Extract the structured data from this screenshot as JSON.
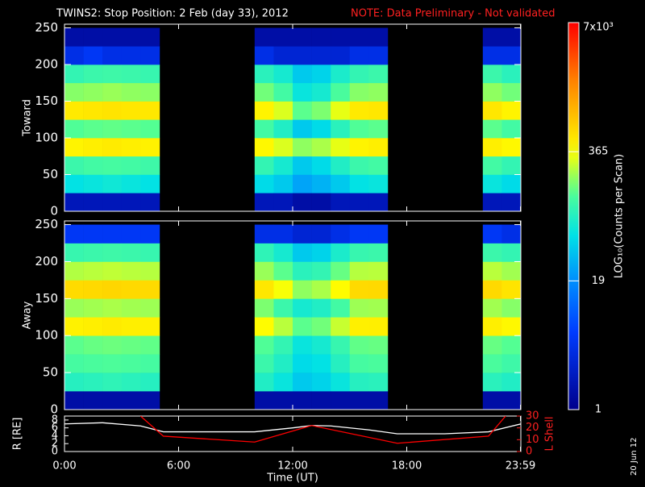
{
  "header": {
    "title": "TWINS2: Stop Position:  2 Feb (day  33), 2012",
    "note": "NOTE: Data Preliminary - Not validated"
  },
  "colorbar": {
    "label": "LOG₁₀(Counts per Scan)",
    "scale": "log",
    "zlim": [
      1,
      7000
    ],
    "zticks": [
      1,
      19,
      365,
      {
        "value": 7000,
        "label": "7x10³"
      }
    ]
  },
  "stamp": "20 Jun 12",
  "chart_data": [
    {
      "type": "heatmap",
      "ylabel": "Toward",
      "ylim": [
        0,
        255
      ],
      "yticks": [
        0,
        50,
        100,
        150,
        200,
        250
      ],
      "x_bins": [
        0,
        1,
        2,
        3,
        4,
        5,
        6,
        7,
        8,
        9,
        10,
        11,
        12,
        13,
        14,
        15,
        16,
        17,
        18,
        19,
        20,
        21,
        22,
        23,
        24
      ],
      "y_bins": [
        0,
        25,
        50,
        75,
        100,
        125,
        150,
        175,
        200,
        225,
        250
      ],
      "z": [
        [
          2,
          55,
          110,
          420,
          140,
          480,
          190,
          100,
          4,
          1.5
        ],
        [
          2,
          60,
          120,
          450,
          150,
          500,
          200,
          110,
          5,
          1.5
        ],
        [
          2,
          65,
          125,
          470,
          155,
          520,
          210,
          115,
          4,
          1.5
        ],
        [
          2,
          60,
          120,
          450,
          150,
          500,
          200,
          110,
          4,
          1.5
        ],
        [
          2,
          55,
          115,
          430,
          145,
          490,
          195,
          105,
          4,
          1.5
        ],
        null,
        null,
        null,
        null,
        null,
        [
          2,
          50,
          100,
          400,
          120,
          420,
          170,
          90,
          4,
          1.5
        ],
        [
          2,
          40,
          70,
          300,
          80,
          300,
          120,
          70,
          3,
          1.5
        ],
        [
          1.5,
          25,
          40,
          200,
          40,
          150,
          60,
          40,
          3,
          1.5
        ],
        [
          1.5,
          30,
          50,
          230,
          50,
          180,
          70,
          45,
          3,
          1.5
        ],
        [
          2,
          40,
          80,
          320,
          90,
          320,
          130,
          75,
          3,
          1.5
        ],
        [
          2,
          55,
          110,
          420,
          140,
          480,
          190,
          100,
          4,
          1.5
        ],
        [
          2,
          60,
          120,
          450,
          150,
          500,
          200,
          110,
          4,
          1.5
        ],
        null,
        null,
        null,
        null,
        null,
        [
          2,
          60,
          120,
          450,
          150,
          500,
          200,
          110,
          4,
          1.5
        ],
        [
          2,
          50,
          100,
          400,
          120,
          420,
          170,
          90,
          4,
          1.5
        ]
      ]
    },
    {
      "type": "heatmap",
      "ylabel": "Away",
      "ylim": [
        0,
        255
      ],
      "yticks": [
        0,
        50,
        100,
        150,
        200,
        250
      ],
      "x_bins": [
        0,
        1,
        2,
        3,
        4,
        5,
        6,
        7,
        8,
        9,
        10,
        11,
        12,
        13,
        14,
        15,
        16,
        17,
        18,
        19,
        20,
        21,
        22,
        23,
        24
      ],
      "y_bins": [
        0,
        25,
        50,
        75,
        100,
        125,
        150,
        175,
        200,
        225,
        250
      ],
      "z": [
        [
          1.5,
          85,
          125,
          150,
          430,
          210,
          580,
          240,
          105,
          5
        ],
        [
          1.5,
          90,
          130,
          160,
          450,
          220,
          600,
          250,
          110,
          5
        ],
        [
          1.5,
          95,
          135,
          165,
          470,
          230,
          620,
          260,
          115,
          5
        ],
        [
          1.5,
          90,
          130,
          160,
          450,
          220,
          600,
          250,
          110,
          5
        ],
        [
          1.5,
          85,
          125,
          155,
          440,
          215,
          590,
          245,
          105,
          5
        ],
        null,
        null,
        null,
        null,
        null,
        [
          1.5,
          80,
          110,
          140,
          380,
          180,
          500,
          210,
          95,
          4
        ],
        [
          1.5,
          60,
          80,
          100,
          250,
          110,
          350,
          150,
          70,
          4
        ],
        [
          1.5,
          40,
          50,
          60,
          150,
          70,
          200,
          90,
          40,
          3
        ],
        [
          1.5,
          45,
          55,
          70,
          170,
          80,
          230,
          100,
          45,
          3
        ],
        [
          1.5,
          60,
          85,
          105,
          270,
          120,
          380,
          160,
          75,
          4
        ],
        [
          1.5,
          85,
          125,
          155,
          440,
          215,
          590,
          245,
          105,
          5
        ],
        [
          1.5,
          90,
          130,
          160,
          450,
          220,
          600,
          250,
          110,
          5
        ],
        null,
        null,
        null,
        null,
        null,
        [
          1.5,
          90,
          130,
          160,
          450,
          220,
          600,
          250,
          110,
          5
        ],
        [
          1.5,
          80,
          115,
          145,
          400,
          190,
          520,
          220,
          100,
          4
        ]
      ]
    },
    {
      "type": "line",
      "xlabel": "Time (UT)",
      "xlim": [
        0,
        24
      ],
      "xticks": [
        {
          "value": 0,
          "label": "0:00"
        },
        {
          "value": 6,
          "label": "6:00"
        },
        {
          "value": 12,
          "label": "12:00"
        },
        {
          "value": 18,
          "label": "18:00"
        },
        {
          "value": 23.98,
          "label": "23:59"
        }
      ],
      "ylabel": "R [RE]",
      "ylim": [
        0,
        9
      ],
      "yticks": [
        0,
        2,
        4,
        6,
        8
      ],
      "y2label": "L Shell",
      "y2lim": [
        0,
        30
      ],
      "y2ticks": [
        0,
        10,
        20,
        30
      ],
      "series": [
        {
          "name": "R",
          "color": "#ffffff",
          "x": [
            0,
            2,
            4,
            5.2,
            8,
            10,
            12,
            13,
            14,
            16,
            17.5,
            20,
            22.3,
            24
          ],
          "values": [
            7,
            7.3,
            6.5,
            5,
            5,
            5,
            6,
            6.6,
            6.5,
            5.5,
            4.5,
            4.5,
            5,
            7
          ]
        },
        {
          "name": "L Shell",
          "color": "#ff0000",
          "axis": "y2",
          "x": [
            4,
            5.2,
            10,
            13,
            17.5,
            22.3,
            23.2
          ],
          "values": [
            30,
            13,
            8,
            22,
            7,
            13,
            30
          ]
        }
      ]
    }
  ]
}
